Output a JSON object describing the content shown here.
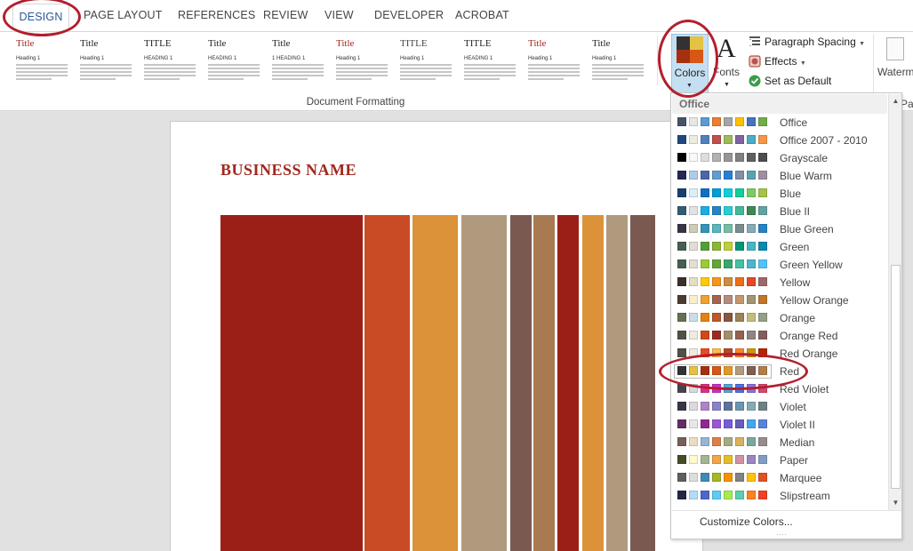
{
  "tabs": [
    "DESIGN",
    "PAGE LAYOUT",
    "REFERENCES",
    "REVIEW",
    "VIEW",
    "DEVELOPER",
    "ACROBAT"
  ],
  "ribbon": {
    "group_label": "Document Formatting",
    "style_sets": [
      {
        "title": "Title",
        "heading": "Heading 1",
        "title_color": "#a0281f"
      },
      {
        "title": "Title",
        "heading": "Heading 1",
        "title_color": "#222222"
      },
      {
        "title": "TITLE",
        "heading": "HEADING 1",
        "title_color": "#222222"
      },
      {
        "title": "Title",
        "heading": "HEADING 1",
        "title_color": "#222222"
      },
      {
        "title": "Title",
        "heading": "1 HEADING 1",
        "title_color": "#222222"
      },
      {
        "title": "Title",
        "heading": "Heading 1",
        "title_color": "#a0281f"
      },
      {
        "title": "TITLE",
        "heading": "Heading 1",
        "title_color": "#444444"
      },
      {
        "title": "TITLE",
        "heading": "HEADING 1",
        "title_color": "#222222"
      },
      {
        "title": "Title",
        "heading": "Heading 1",
        "title_color": "#a0281f"
      },
      {
        "title": "Title",
        "heading": "Heading 1",
        "title_color": "#222222"
      }
    ],
    "colors_label": "Colors",
    "fonts_label": "Fonts",
    "fonts_glyph": "A",
    "paragraph_spacing_label": "Paragraph Spacing",
    "effects_label": "Effects",
    "set_default_label": "Set as Default",
    "watermark_label": "Waterm",
    "page_partial": "Pag"
  },
  "document": {
    "business_name": "BUSINESS NAME",
    "stripe_colors": [
      "#9b1f17",
      "#c84b26",
      "#dc9239",
      "#b09a7e",
      "#7a5a50",
      "#a87a52",
      "#9b1f17",
      "#dc9239",
      "#b09a7e",
      "#7a5a50"
    ]
  },
  "dropdown": {
    "header": "Office",
    "selected": "Red",
    "customize_label": "Customize Colors...",
    "resize_dots": "....",
    "schemes": [
      {
        "name": "Office",
        "swatches": [
          "#44546a",
          "#e7e6e6",
          "#5b9bd5",
          "#ed7d31",
          "#a5a5a5",
          "#ffc000",
          "#4472c4",
          "#70ad47"
        ]
      },
      {
        "name": "Office 2007 - 2010",
        "swatches": [
          "#1f497d",
          "#eeece1",
          "#4f81bd",
          "#c0504d",
          "#9bbb59",
          "#8064a2",
          "#4bacc6",
          "#f79646"
        ]
      },
      {
        "name": "Grayscale",
        "swatches": [
          "#000000",
          "#f8f8f8",
          "#dddddd",
          "#b2b2b2",
          "#969696",
          "#808080",
          "#5f5f5f",
          "#4d4d4d"
        ]
      },
      {
        "name": "Blue Warm",
        "swatches": [
          "#242852",
          "#acccea",
          "#4a66ac",
          "#629dd1",
          "#297fd5",
          "#7f8fa9",
          "#5aa2ae",
          "#9d90a0"
        ]
      },
      {
        "name": "Blue",
        "swatches": [
          "#17406d",
          "#dbeff9",
          "#0f6fc6",
          "#009dd9",
          "#0bd0d9",
          "#10cf9b",
          "#7cca62",
          "#a5c249"
        ]
      },
      {
        "name": "Blue II",
        "swatches": [
          "#335b74",
          "#dfe3e5",
          "#1cade4",
          "#2683c6",
          "#27ced7",
          "#42ba97",
          "#3e8853",
          "#62a39f"
        ]
      },
      {
        "name": "Blue Green",
        "swatches": [
          "#373545",
          "#ceccb8",
          "#3494ba",
          "#58b6c0",
          "#75bda7",
          "#7a8c8e",
          "#84acb6",
          "#2683c6"
        ]
      },
      {
        "name": "Green",
        "swatches": [
          "#455f51",
          "#e3ded1",
          "#549e39",
          "#8ab833",
          "#c0cf3a",
          "#029676",
          "#4ab5c4",
          "#0989b1"
        ]
      },
      {
        "name": "Green Yellow",
        "swatches": [
          "#455f51",
          "#e3ded1",
          "#99cb38",
          "#63a537",
          "#37a76f",
          "#44c1a3",
          "#4eb3cf",
          "#51c3f9"
        ]
      },
      {
        "name": "Yellow",
        "swatches": [
          "#39302a",
          "#e5dec5",
          "#ffca08",
          "#f8931d",
          "#ce8d3e",
          "#ec7016",
          "#e64823",
          "#9c6a6a"
        ]
      },
      {
        "name": "Yellow Orange",
        "swatches": [
          "#4e3b30",
          "#fbeec9",
          "#f0a22e",
          "#a5644e",
          "#b58b80",
          "#c3986d",
          "#a19574",
          "#c17529"
        ]
      },
      {
        "name": "Orange",
        "swatches": [
          "#637052",
          "#ccddea",
          "#e48312",
          "#bd582c",
          "#865640",
          "#9b8357",
          "#c2bc80",
          "#94a088"
        ]
      },
      {
        "name": "Orange Red",
        "swatches": [
          "#505046",
          "#eeece1",
          "#d34817",
          "#9b2d1f",
          "#a28e6a",
          "#956251",
          "#918485",
          "#855d5d"
        ]
      },
      {
        "name": "Red Orange",
        "swatches": [
          "#505046",
          "#eeece1",
          "#e84c22",
          "#ffbd47",
          "#b64926",
          "#ff8427",
          "#cc9900",
          "#b22600"
        ]
      },
      {
        "name": "Red",
        "swatches": [
          "#323232",
          "#e5c243",
          "#a5300f",
          "#d55816",
          "#e19825",
          "#b19c7d",
          "#7f5f52",
          "#b27d49"
        ]
      },
      {
        "name": "Red Violet",
        "swatches": [
          "#454551",
          "#d8d9dc",
          "#e32d91",
          "#c830cc",
          "#4ea6dc",
          "#4775e7",
          "#8971e1",
          "#d54773"
        ]
      },
      {
        "name": "Violet",
        "swatches": [
          "#373545",
          "#dcd8dc",
          "#ad84c6",
          "#8784c7",
          "#5d739a",
          "#6997af",
          "#84acb6",
          "#6f8183"
        ]
      },
      {
        "name": "Violet II",
        "swatches": [
          "#632e62",
          "#eae5eb",
          "#92278f",
          "#9b57d3",
          "#755dd9",
          "#665eb8",
          "#45a5ed",
          "#5982db"
        ]
      },
      {
        "name": "Median",
        "swatches": [
          "#775f55",
          "#ebddc3",
          "#94b6d2",
          "#dd8047",
          "#a5ab81",
          "#d8b25c",
          "#7ba79d",
          "#968c8c"
        ]
      },
      {
        "name": "Paper",
        "swatches": [
          "#444d26",
          "#fefac9",
          "#a5b592",
          "#f3a447",
          "#e7bc29",
          "#d092a7",
          "#9c85c0",
          "#809ec2"
        ]
      },
      {
        "name": "Marquee",
        "swatches": [
          "#5e5e5e",
          "#ddddde",
          "#418ab3",
          "#a6b727",
          "#f69200",
          "#838383",
          "#fec306",
          "#df5327"
        ]
      },
      {
        "name": "Slipstream",
        "swatches": [
          "#212745",
          "#b4dcfa",
          "#4e67c8",
          "#5eccf3",
          "#a7ea52",
          "#5dceaf",
          "#ff8021",
          "#f14124"
        ]
      }
    ]
  }
}
